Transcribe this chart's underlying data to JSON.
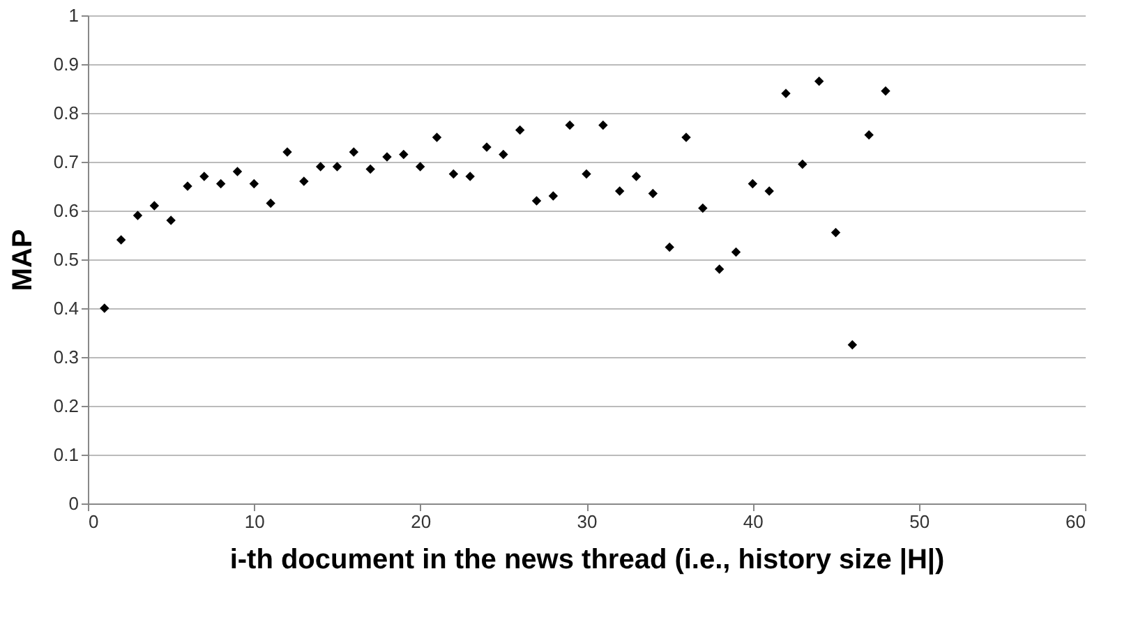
{
  "chart_data": {
    "type": "scatter",
    "xlabel": "i-th document in the news thread (i.e., history size |H|)",
    "ylabel": "MAP",
    "x": [
      1,
      2,
      3,
      4,
      5,
      6,
      7,
      8,
      9,
      10,
      11,
      12,
      13,
      14,
      15,
      16,
      17,
      18,
      19,
      20,
      21,
      22,
      23,
      24,
      25,
      26,
      27,
      28,
      29,
      30,
      31,
      32,
      33,
      34,
      35,
      36,
      37,
      38,
      39,
      40,
      41,
      42,
      43,
      44,
      45,
      46,
      47,
      48
    ],
    "series": [
      {
        "color": "#000000",
        "values": [
          0.4,
          0.54,
          0.59,
          0.61,
          0.58,
          0.65,
          0.67,
          0.655,
          0.68,
          0.655,
          0.615,
          0.72,
          0.66,
          0.69,
          0.69,
          0.72,
          0.685,
          0.71,
          0.715,
          0.69,
          0.75,
          0.675,
          0.67,
          0.73,
          0.715,
          0.765,
          0.62,
          0.63,
          0.775,
          0.675,
          0.775,
          0.64,
          0.67,
          0.635,
          0.525,
          0.75,
          0.605,
          0.48,
          0.515,
          0.655,
          0.64,
          0.84,
          0.695,
          0.865,
          0.555,
          0.325,
          0.755,
          0.845
        ]
      }
    ],
    "xlim": [
      0,
      60
    ],
    "xticks": [
      0,
      10,
      20,
      30,
      40,
      50,
      60
    ],
    "ylim": [
      0,
      1
    ],
    "yticks": [
      0,
      0.1,
      0.2,
      0.3,
      0.4,
      0.5,
      0.6,
      0.7,
      0.8,
      0.9,
      1
    ],
    "grid": "y",
    "legend": false,
    "marker": "diamond"
  }
}
